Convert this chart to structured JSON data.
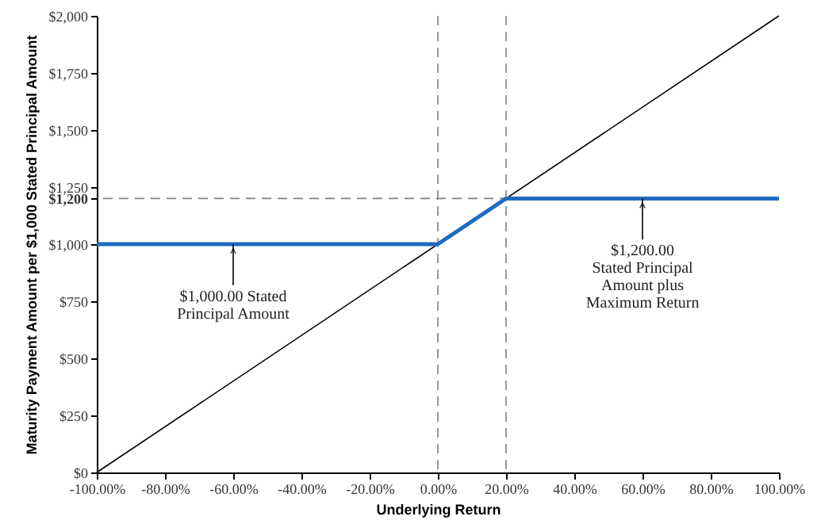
{
  "chart_data": {
    "type": "line",
    "xlabel": "Underlying Return",
    "ylabel": "Maturity Payment Amount per $1,000 Stated Principal Amount",
    "xlim": [
      -100,
      100
    ],
    "ylim": [
      0,
      2000
    ],
    "xticks": [
      {
        "value": -100,
        "label": "-100.00%"
      },
      {
        "value": -80,
        "label": "-80.00%"
      },
      {
        "value": -60,
        "label": "-60.00%"
      },
      {
        "value": -40,
        "label": "-40.00%"
      },
      {
        "value": -20,
        "label": "-20.00%"
      },
      {
        "value": 0,
        "label": "0.00%"
      },
      {
        "value": 20,
        "label": "20.00%"
      },
      {
        "value": 40,
        "label": "40.00%"
      },
      {
        "value": 60,
        "label": "60.00%"
      },
      {
        "value": 80,
        "label": "80.00%"
      },
      {
        "value": 100,
        "label": "100.00%"
      }
    ],
    "yticks": [
      {
        "value": 0,
        "label": "$0"
      },
      {
        "value": 250,
        "label": "$250"
      },
      {
        "value": 500,
        "label": "$500"
      },
      {
        "value": 750,
        "label": "$750"
      },
      {
        "value": 1000,
        "label": "$1,000"
      },
      {
        "value": 1200,
        "label": "$1,200"
      },
      {
        "value": 1250,
        "label": "$1,250"
      },
      {
        "value": 1500,
        "label": "$1,500"
      },
      {
        "value": 1750,
        "label": "$1,750"
      },
      {
        "value": 2000,
        "label": "$2,000"
      }
    ],
    "series": [
      {
        "color": "#000000",
        "x": [
          -100,
          100
        ],
        "values": [
          0,
          2000
        ]
      },
      {
        "color": "#1f6bbf",
        "x": [
          -100,
          0,
          20,
          100
        ],
        "values": [
          1000,
          1000,
          1200,
          1200
        ]
      }
    ],
    "ref_lines": [
      {
        "axis": "y",
        "value": 1200,
        "color": "#808080",
        "line_style": "dashed"
      },
      {
        "axis": "x",
        "value": 0,
        "color": "#808080",
        "line_style": "dashed"
      },
      {
        "axis": "x",
        "value": 20,
        "color": "#808080",
        "line_style": "dashed"
      }
    ],
    "annotations": [
      {
        "text": "$1,000.00 Stated\nPrincipal Amount",
        "x": -60,
        "y": 1000
      },
      {
        "text": "$1,200.00\nStated Principal\nAmount plus\nMaximum Return",
        "x": 60,
        "y": 1200
      }
    ],
    "grid": false
  }
}
